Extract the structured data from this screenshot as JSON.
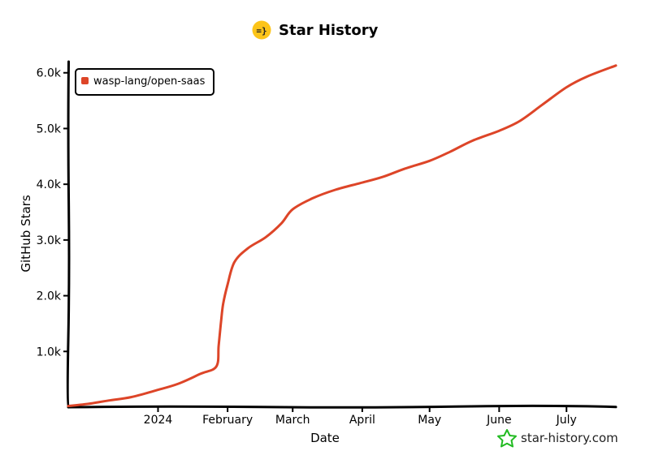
{
  "chart_data": {
    "type": "line",
    "title": "Star History",
    "xlabel": "Date",
    "ylabel": "GitHub Stars",
    "x_ticks": [
      "2024",
      "February",
      "March",
      "April",
      "May",
      "June",
      "July"
    ],
    "y_ticks": [
      "1.0k",
      "2.0k",
      "3.0k",
      "4.0k",
      "5.0k",
      "6.0k"
    ],
    "xlim": [
      "2023-11-22",
      "2024-07-23"
    ],
    "ylim": [
      0,
      6200
    ],
    "grid": false,
    "legend_position": "top-left",
    "series": [
      {
        "name": "wasp-lang/open-saas",
        "color": "#dd4528",
        "x": [
          "2023-11-22",
          "2023-12-01",
          "2023-12-10",
          "2023-12-20",
          "2023-12-31",
          "2024-01-10",
          "2024-01-20",
          "2024-01-27",
          "2024-01-28",
          "2024-01-29",
          "2024-01-30",
          "2024-02-01",
          "2024-02-04",
          "2024-02-10",
          "2024-02-18",
          "2024-02-25",
          "2024-03-01",
          "2024-03-10",
          "2024-03-20",
          "2024-03-31",
          "2024-04-10",
          "2024-04-20",
          "2024-05-01",
          "2024-05-10",
          "2024-05-20",
          "2024-06-01",
          "2024-06-10",
          "2024-06-20",
          "2024-07-01",
          "2024-07-10",
          "2024-07-23"
        ],
        "values": [
          20,
          60,
          120,
          180,
          300,
          420,
          600,
          730,
          1100,
          1500,
          1850,
          2200,
          2600,
          2850,
          3050,
          3300,
          3550,
          3750,
          3900,
          4020,
          4130,
          4280,
          4420,
          4580,
          4780,
          4960,
          5130,
          5420,
          5740,
          5930,
          6130
        ]
      }
    ]
  },
  "watermark": {
    "text": "star-history.com",
    "icon": "star-outline-icon",
    "color": "#22bb22"
  },
  "logo": {
    "text": "=}",
    "color": "#fcc419"
  }
}
